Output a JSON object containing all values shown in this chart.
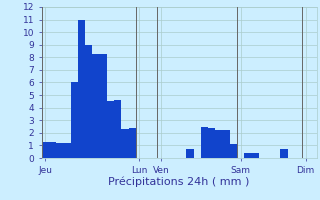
{
  "xlabel": "Précipitations 24h ( mm )",
  "background_color": "#cceeff",
  "bar_color": "#1144cc",
  "grid_color": "#aacccc",
  "vline_color": "#666666",
  "ylim": [
    0,
    12
  ],
  "yticks": [
    0,
    1,
    2,
    3,
    4,
    5,
    6,
    7,
    8,
    9,
    10,
    11,
    12
  ],
  "bar_values": [
    1.3,
    1.3,
    1.2,
    1.2,
    6.0,
    11.0,
    9.0,
    8.3,
    8.3,
    4.5,
    4.6,
    2.3,
    2.4,
    0,
    0,
    0,
    0,
    0,
    0,
    0,
    0.7,
    0,
    2.5,
    2.4,
    2.2,
    2.2,
    1.1,
    0,
    0.4,
    0.4,
    0,
    0,
    0,
    0.7,
    0,
    0,
    0,
    0
  ],
  "day_labels": [
    "Jeu",
    "Lun",
    "Ven",
    "Sam",
    "Dim"
  ],
  "day_tick_positions": [
    0,
    13,
    16,
    27,
    36
  ],
  "vline_positions": [
    0,
    13,
    16,
    27,
    36
  ],
  "xlabel_fontsize": 8,
  "tick_fontsize": 6.5,
  "label_color": "#1144cc",
  "tick_color": "#333399",
  "figwidth": 3.2,
  "figheight": 2.0,
  "dpi": 100
}
